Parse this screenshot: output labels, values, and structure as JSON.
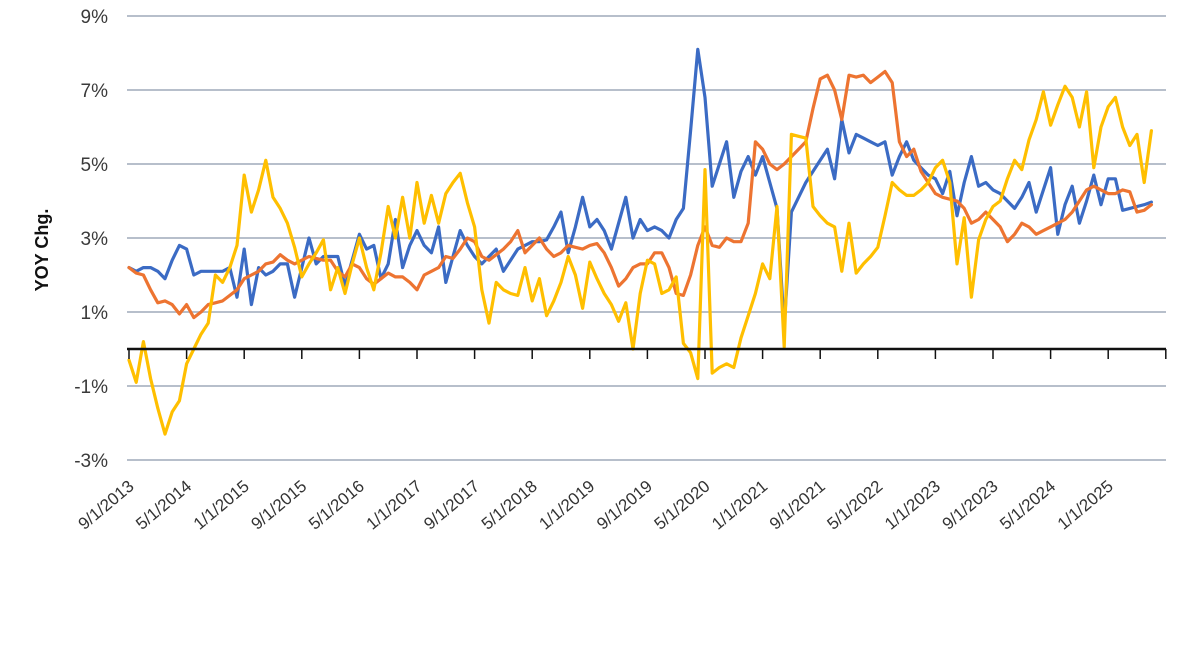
{
  "chart_data": {
    "type": "line",
    "title": "",
    "xlabel": "",
    "ylabel": "YOY Chg.",
    "ylim": [
      -3,
      9
    ],
    "yticks": [
      9,
      7,
      5,
      3,
      1,
      -1,
      -3
    ],
    "ytick_labels": [
      "9%",
      "7%",
      "5%",
      "3%",
      "1%",
      "-1%",
      "-3%"
    ],
    "x_start": "9/1/2013",
    "x_frequency": "monthly",
    "xtick_labels": [
      "9/1/2013",
      "5/1/2014",
      "1/1/2015",
      "9/1/2015",
      "5/1/2016",
      "1/1/2017",
      "9/1/2017",
      "5/1/2018",
      "1/1/2019",
      "9/1/2019",
      "5/1/2020",
      "1/1/2021",
      "9/1/2021",
      "5/1/2022",
      "1/1/2023",
      "9/1/2023",
      "5/1/2024",
      "1/1/2025"
    ],
    "xtick_step_months": 8,
    "grid": true,
    "legend": "none",
    "series": [
      {
        "color": "#3b6bc4",
        "values": [
          2.2,
          2.1,
          2.2,
          2.2,
          2.1,
          1.9,
          2.4,
          2.8,
          2.7,
          2.0,
          2.1,
          2.1,
          2.1,
          2.1,
          2.2,
          1.4,
          2.7,
          1.2,
          2.2,
          2.0,
          2.1,
          2.3,
          2.3,
          1.4,
          2.2,
          3.0,
          2.3,
          2.5,
          2.5,
          2.5,
          1.7,
          2.4,
          3.1,
          2.7,
          2.8,
          1.9,
          2.3,
          3.5,
          2.2,
          2.8,
          3.2,
          2.8,
          2.6,
          3.3,
          1.8,
          2.5,
          3.2,
          2.8,
          2.5,
          2.3,
          2.5,
          2.7,
          2.1,
          2.4,
          2.7,
          2.8,
          2.9,
          2.9,
          2.95,
          3.3,
          3.7,
          2.6,
          3.3,
          4.1,
          3.3,
          3.5,
          3.2,
          2.7,
          3.4,
          4.1,
          3.0,
          3.5,
          3.2,
          3.3,
          3.2,
          3.0,
          3.5,
          3.8,
          5.9,
          8.1,
          6.8,
          4.4,
          5.0,
          5.6,
          4.1,
          4.8,
          5.2,
          4.7,
          5.2,
          4.5,
          3.8,
          0.6,
          3.7,
          4.1,
          4.5,
          4.8,
          5.1,
          5.4,
          4.6,
          6.2,
          5.3,
          5.8,
          5.7,
          5.6,
          5.5,
          5.6,
          4.7,
          5.2,
          5.6,
          5.1,
          4.9,
          4.7,
          4.6,
          4.2,
          4.8,
          3.6,
          4.5,
          5.2,
          4.4,
          4.5,
          4.3,
          4.2,
          4.0,
          3.8,
          4.1,
          4.5,
          3.7,
          4.3,
          4.9,
          3.1,
          3.9,
          4.4,
          3.4,
          4.0,
          4.7,
          3.9,
          4.6,
          4.6,
          3.75,
          3.8,
          3.85,
          3.9,
          3.97
        ]
      },
      {
        "color": "#ed7431",
        "values": [
          2.2,
          2.05,
          2.0,
          1.6,
          1.25,
          1.3,
          1.2,
          0.95,
          1.2,
          0.85,
          1.0,
          1.2,
          1.25,
          1.3,
          1.45,
          1.6,
          1.9,
          2.0,
          2.1,
          2.3,
          2.35,
          2.55,
          2.4,
          2.3,
          2.4,
          2.5,
          2.45,
          2.4,
          2.4,
          2.1,
          1.95,
          2.3,
          2.2,
          1.9,
          1.75,
          1.9,
          2.05,
          1.95,
          1.95,
          1.8,
          1.6,
          2.0,
          2.1,
          2.2,
          2.5,
          2.45,
          2.7,
          3.0,
          2.9,
          2.5,
          2.4,
          2.55,
          2.7,
          2.9,
          3.2,
          2.6,
          2.8,
          3.0,
          2.7,
          2.5,
          2.6,
          2.8,
          2.75,
          2.7,
          2.8,
          2.85,
          2.6,
          2.2,
          1.7,
          1.9,
          2.2,
          2.3,
          2.3,
          2.6,
          2.6,
          2.2,
          1.5,
          1.45,
          2.0,
          2.8,
          3.3,
          2.8,
          2.75,
          3.0,
          2.9,
          2.9,
          3.4,
          5.6,
          5.4,
          5.0,
          4.85,
          5.0,
          5.2,
          5.4,
          5.6,
          6.5,
          7.3,
          7.4,
          7.0,
          6.2,
          7.4,
          7.35,
          7.4,
          7.2,
          7.35,
          7.5,
          7.2,
          5.6,
          5.2,
          5.4,
          4.8,
          4.5,
          4.2,
          4.1,
          4.05,
          4.0,
          3.8,
          3.4,
          3.5,
          3.7,
          3.5,
          3.3,
          2.9,
          3.1,
          3.4,
          3.3,
          3.1,
          3.2,
          3.3,
          3.4,
          3.5,
          3.7,
          4.0,
          4.3,
          4.4,
          4.3,
          4.2,
          4.2,
          4.3,
          4.25,
          3.7,
          3.75,
          3.9
        ]
      },
      {
        "color": "#ffbf00",
        "values": [
          -0.3,
          -0.9,
          0.2,
          -0.8,
          -1.6,
          -2.3,
          -1.7,
          -1.4,
          -0.4,
          0.0,
          0.4,
          0.7,
          2.0,
          1.8,
          2.2,
          2.8,
          4.7,
          3.7,
          4.3,
          5.1,
          4.1,
          3.8,
          3.4,
          2.75,
          1.95,
          2.3,
          2.6,
          2.95,
          1.6,
          2.2,
          1.5,
          2.3,
          3.0,
          2.2,
          1.6,
          2.6,
          3.85,
          3.0,
          4.1,
          3.0,
          4.5,
          3.4,
          4.15,
          3.4,
          4.2,
          4.5,
          4.75,
          3.95,
          3.3,
          1.6,
          0.7,
          1.8,
          1.6,
          1.5,
          1.45,
          2.2,
          1.3,
          1.9,
          0.9,
          1.3,
          1.8,
          2.5,
          2.0,
          1.1,
          2.35,
          1.9,
          1.5,
          1.2,
          0.75,
          1.25,
          0.0,
          1.5,
          2.4,
          2.3,
          1.5,
          1.6,
          1.95,
          0.15,
          -0.1,
          -0.8,
          4.85,
          -0.65,
          -0.5,
          -0.4,
          -0.5,
          0.3,
          0.9,
          1.5,
          2.3,
          1.9,
          3.85,
          0.05,
          5.8,
          5.75,
          5.7,
          3.85,
          3.6,
          3.4,
          3.3,
          2.1,
          3.4,
          2.05,
          2.3,
          2.5,
          2.75,
          3.6,
          4.5,
          4.3,
          4.15,
          4.15,
          4.3,
          4.5,
          4.9,
          5.1,
          4.5,
          2.3,
          3.55,
          1.4,
          2.95,
          3.5,
          3.85,
          4.0,
          4.6,
          5.1,
          4.85,
          5.65,
          6.2,
          6.95,
          6.05,
          6.6,
          7.1,
          6.8,
          6.0,
          6.95,
          4.9,
          6.0,
          6.55,
          6.8,
          6.0,
          5.5,
          5.8,
          4.5,
          5.9
        ]
      }
    ]
  },
  "colors": {
    "grid": "#b7bfcb",
    "axis": "#111111"
  }
}
